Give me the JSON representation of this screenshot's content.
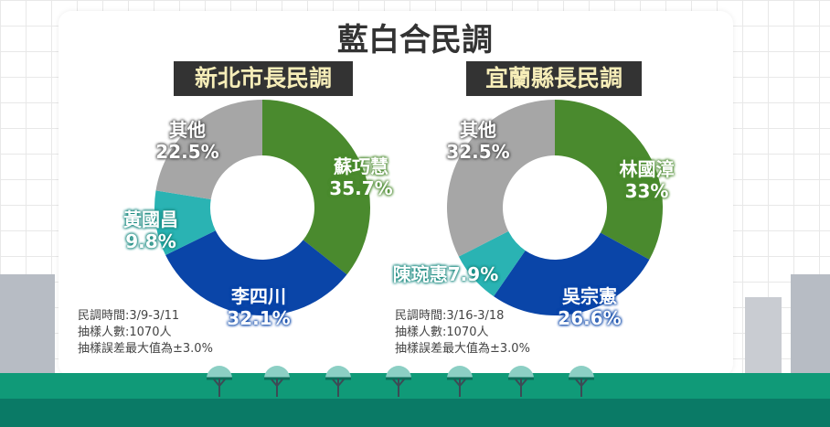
{
  "title": "藍白合民調",
  "colors": {
    "green": "#4a8a2e",
    "blue": "#0a45a8",
    "teal": "#2ab3b3",
    "gray": "#a6a6a6"
  },
  "chart_data": [
    {
      "type": "pie",
      "donut": true,
      "title": "新北市長民調",
      "slices": [
        {
          "name": "蘇巧慧",
          "value": 35.7,
          "label": "35.7%",
          "color": "#4a8a2e"
        },
        {
          "name": "李四川",
          "value": 32.1,
          "label": "32.1%",
          "color": "#0a45a8"
        },
        {
          "name": "黃國昌",
          "value": 9.8,
          "label": "9.8%",
          "color": "#2ab3b3"
        },
        {
          "name": "其他",
          "value": 22.5,
          "label": "22.5%",
          "color": "#a6a6a6"
        }
      ],
      "notes": [
        "民調時間:3/9-3/11",
        "抽樣人數:1070人",
        "抽樣誤差最大值為±3.0%"
      ]
    },
    {
      "type": "pie",
      "donut": true,
      "title": "宜蘭縣長民調",
      "slices": [
        {
          "name": "林國漳",
          "value": 33,
          "label": "33%",
          "color": "#4a8a2e"
        },
        {
          "name": "吳宗憲",
          "value": 26.6,
          "label": "26.6%",
          "color": "#0a45a8"
        },
        {
          "name": "陳琬惠",
          "value": 7.9,
          "label": "7.9%",
          "color": "#2ab3b3"
        },
        {
          "name": "其他",
          "value": 32.5,
          "label": "32.5%",
          "color": "#a6a6a6"
        }
      ],
      "notes": [
        "民調時間:3/16-3/18",
        "抽樣人數:1070人",
        "抽樣誤差最大值為±3.0%"
      ]
    }
  ]
}
